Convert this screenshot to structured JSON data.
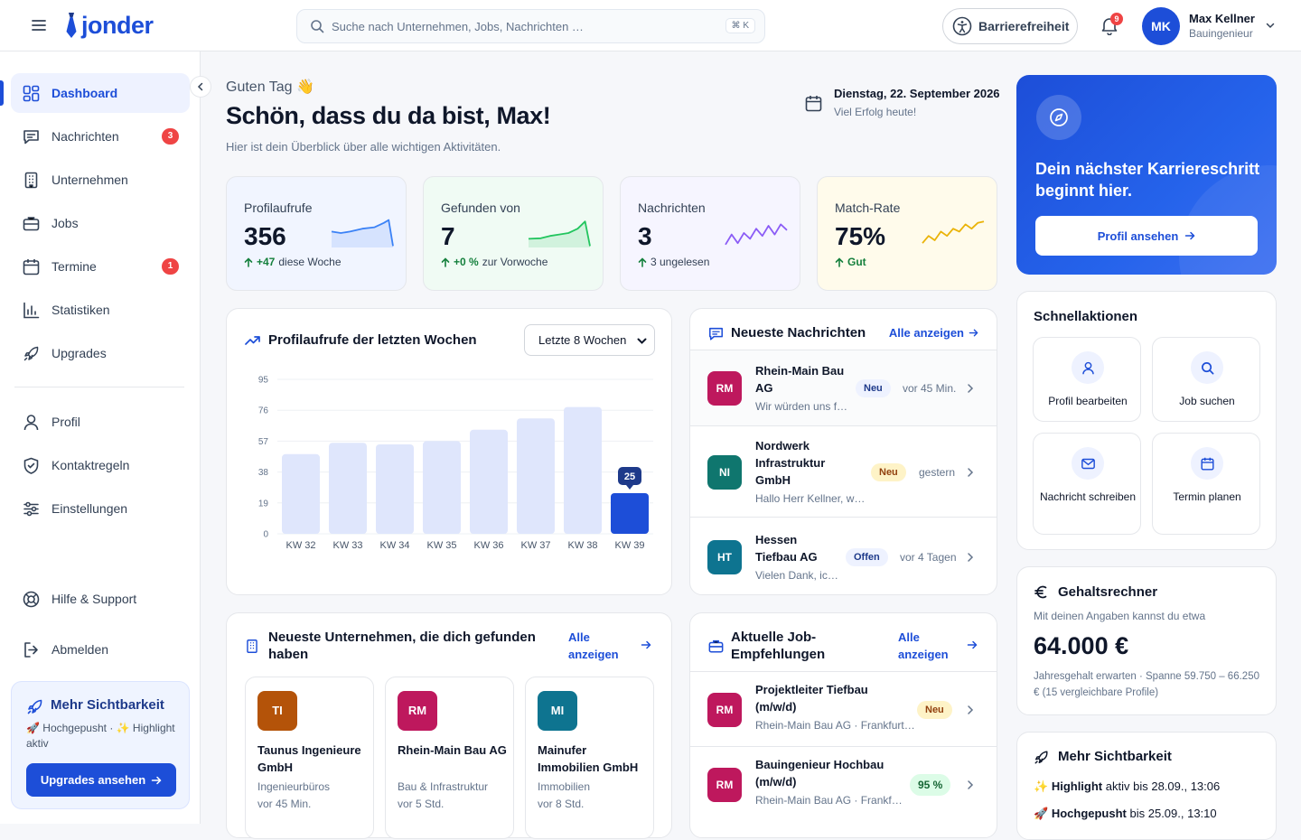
{
  "header": {
    "logo": "jonder",
    "search_placeholder": "Suche nach Unternehmen, Jobs, Nachrichten …",
    "search_shortcut": "⌘ K",
    "accessibility_label": "Barrierefreiheit",
    "notification_count": "9",
    "user": {
      "initials": "MK",
      "name": "Max Kellner",
      "role": "Bauingenieur"
    }
  },
  "sidebar": {
    "items": [
      {
        "label": "Dashboard",
        "icon": "dashboard-icon",
        "active": true
      },
      {
        "label": "Nachrichten",
        "icon": "chat-icon",
        "badge": "3"
      },
      {
        "label": "Unternehmen",
        "icon": "building-icon"
      },
      {
        "label": "Jobs",
        "icon": "briefcase-icon"
      },
      {
        "label": "Termine",
        "icon": "calendar-icon",
        "badge": "1"
      },
      {
        "label": "Statistiken",
        "icon": "bar-chart-icon"
      },
      {
        "label": "Upgrades",
        "icon": "rocket-icon"
      },
      {
        "label": "Profil",
        "icon": "user-icon"
      },
      {
        "label": "Kontaktregeln",
        "icon": "shield-icon"
      },
      {
        "label": "Einstellungen",
        "icon": "sliders-icon"
      }
    ],
    "bottom": [
      {
        "label": "Hilfe & Support",
        "icon": "lifebuoy-icon"
      },
      {
        "label": "Abmelden",
        "icon": "logout-icon"
      }
    ],
    "promo": {
      "title": "Mehr Sichtbarkeit",
      "text": "🚀 Hochgepusht · ✨ Highlight aktiv",
      "button": "Upgrades ansehen"
    }
  },
  "greeting": {
    "hello": "Guten Tag 👋",
    "title": "Schön, dass du da bist, Max!",
    "subtitle": "Hier ist dein Überblick über alle wichtigen Aktivitäten.",
    "date": "Dienstag, 22. September 2026",
    "date_sub": "Viel Erfolg heute!"
  },
  "stats": [
    {
      "label": "Profilaufrufe",
      "value": "356",
      "delta": "+47",
      "delta_text": "diese Woche",
      "color": "#3b82f6",
      "bg": "#f1f5ff"
    },
    {
      "label": "Gefunden von",
      "value": "7",
      "delta": "+0 %",
      "delta_text": "zur Vorwoche",
      "color": "#22c55e",
      "bg": "#f0fbf4"
    },
    {
      "label": "Nachrichten",
      "value": "3",
      "delta": "",
      "delta_text": "3 ungelesen",
      "color": "#8b5cf6",
      "bg": "#f6f5ff"
    },
    {
      "label": "Match-Rate",
      "value": "75%",
      "delta": "Gut",
      "delta_text": "",
      "color": "#eab308",
      "bg": "#fffbeb"
    }
  ],
  "chart_card": {
    "title": "Profilaufrufe der letzten Wochen",
    "range_select": "Letzte 8 Wochen"
  },
  "chart_data": {
    "type": "bar",
    "title": "Profilaufrufe der letzten Wochen",
    "categories": [
      "KW 32",
      "KW 33",
      "KW 34",
      "KW 35",
      "KW 36",
      "KW 37",
      "KW 38",
      "KW 39"
    ],
    "values": [
      49,
      56,
      55,
      57,
      64,
      71,
      78,
      25
    ],
    "highlight": {
      "index": 7,
      "label": "25"
    },
    "yticks": [
      0,
      19,
      38,
      57,
      76,
      95
    ],
    "ylim": [
      0,
      95
    ],
    "grid": true,
    "colors": {
      "bar": "#dfe6fc",
      "highlight": "#1d4ed8"
    }
  },
  "messages": {
    "title": "Neueste Nachrichten",
    "all_label": "Alle anzeigen",
    "items": [
      {
        "initials": "RM",
        "color": "#be185d",
        "name": [
          "Rhein-Main Bau",
          "AG"
        ],
        "preview": "Wir würden uns f…",
        "status": "Neu",
        "time": "vor 45 Min."
      },
      {
        "initials": "NI",
        "color": "#0f766e",
        "name": [
          "Nordwerk",
          "Infrastruktur",
          "GmbH"
        ],
        "preview": "Hallo Herr Kellner, w…",
        "status": "Neu",
        "time": "gestern"
      },
      {
        "initials": "HT",
        "color": "#0e7490",
        "name": [
          "Hessen",
          "Tiefbau AG"
        ],
        "preview": "Vielen Dank, ic…",
        "status": "Offen",
        "time": "vor 4 Tagen"
      }
    ]
  },
  "companies": {
    "title": "Neueste Unternehmen, die dich gefunden haben",
    "all_label_1": "Alle",
    "all_label_2": "anzeigen",
    "items": [
      {
        "initials": "TI",
        "color": "#b45309",
        "name": "Taunus Ingenieure GmbH",
        "category": "Ingenieurbüros",
        "time": "vor 45 Min."
      },
      {
        "initials": "RM",
        "color": "#be185d",
        "name": "Rhein-Main Bau AG",
        "category": "Bau & Infrastruktur",
        "time": "vor 5 Std."
      },
      {
        "initials": "MI",
        "color": "#0e7490",
        "name": "Mainufer Immobilien GmbH",
        "category": "Immobilien",
        "time": "vor 8 Std."
      }
    ]
  },
  "jobs": {
    "title": "Aktuelle Job-Empfehlungen",
    "all_label_1": "Alle",
    "all_label_2": "anzeigen",
    "items": [
      {
        "initials": "RM",
        "color": "#be185d",
        "name": [
          "Projektleiter Tiefbau",
          "(m/w/d)"
        ],
        "company": "Rhein-Main Bau AG · Frankfurt…",
        "badge": "Neu"
      },
      {
        "initials": "RM",
        "color": "#be185d",
        "name": [
          "Bauingenieur Hochbau",
          "(m/w/d)"
        ],
        "company": "Rhein-Main Bau AG · Frankf…",
        "badge": "95 %"
      }
    ]
  },
  "hero": {
    "title": "Dein nächster Karriereschritt beginnt hier.",
    "button": "Profil ansehen"
  },
  "quick_actions": {
    "title": "Schnellaktionen",
    "items": [
      {
        "label": "Profil bearbeiten",
        "icon": "user-icon"
      },
      {
        "label": "Job suchen",
        "icon": "search-icon"
      },
      {
        "label": "Nachricht schreiben",
        "icon": "mail-icon"
      },
      {
        "label": "Termin planen",
        "icon": "calendar-icon"
      }
    ]
  },
  "salary": {
    "title": "Gehaltsrechner",
    "subtitle": "Mit deinen Angaben kannst du etwa",
    "value": "64.000 €",
    "note": "Jahresgehalt erwarten · Spanne 59.750 – 66.250 € (15 vergleichbare Profile)"
  },
  "visibility": {
    "title": "Mehr Sichtbarkeit",
    "rows": [
      {
        "emoji": "✨",
        "bold": "Highlight",
        "text": "aktiv bis 28.09., 13:06"
      },
      {
        "emoji": "🚀",
        "bold": "Hochgepusht",
        "text": "bis 25.09., 13:10"
      }
    ]
  }
}
